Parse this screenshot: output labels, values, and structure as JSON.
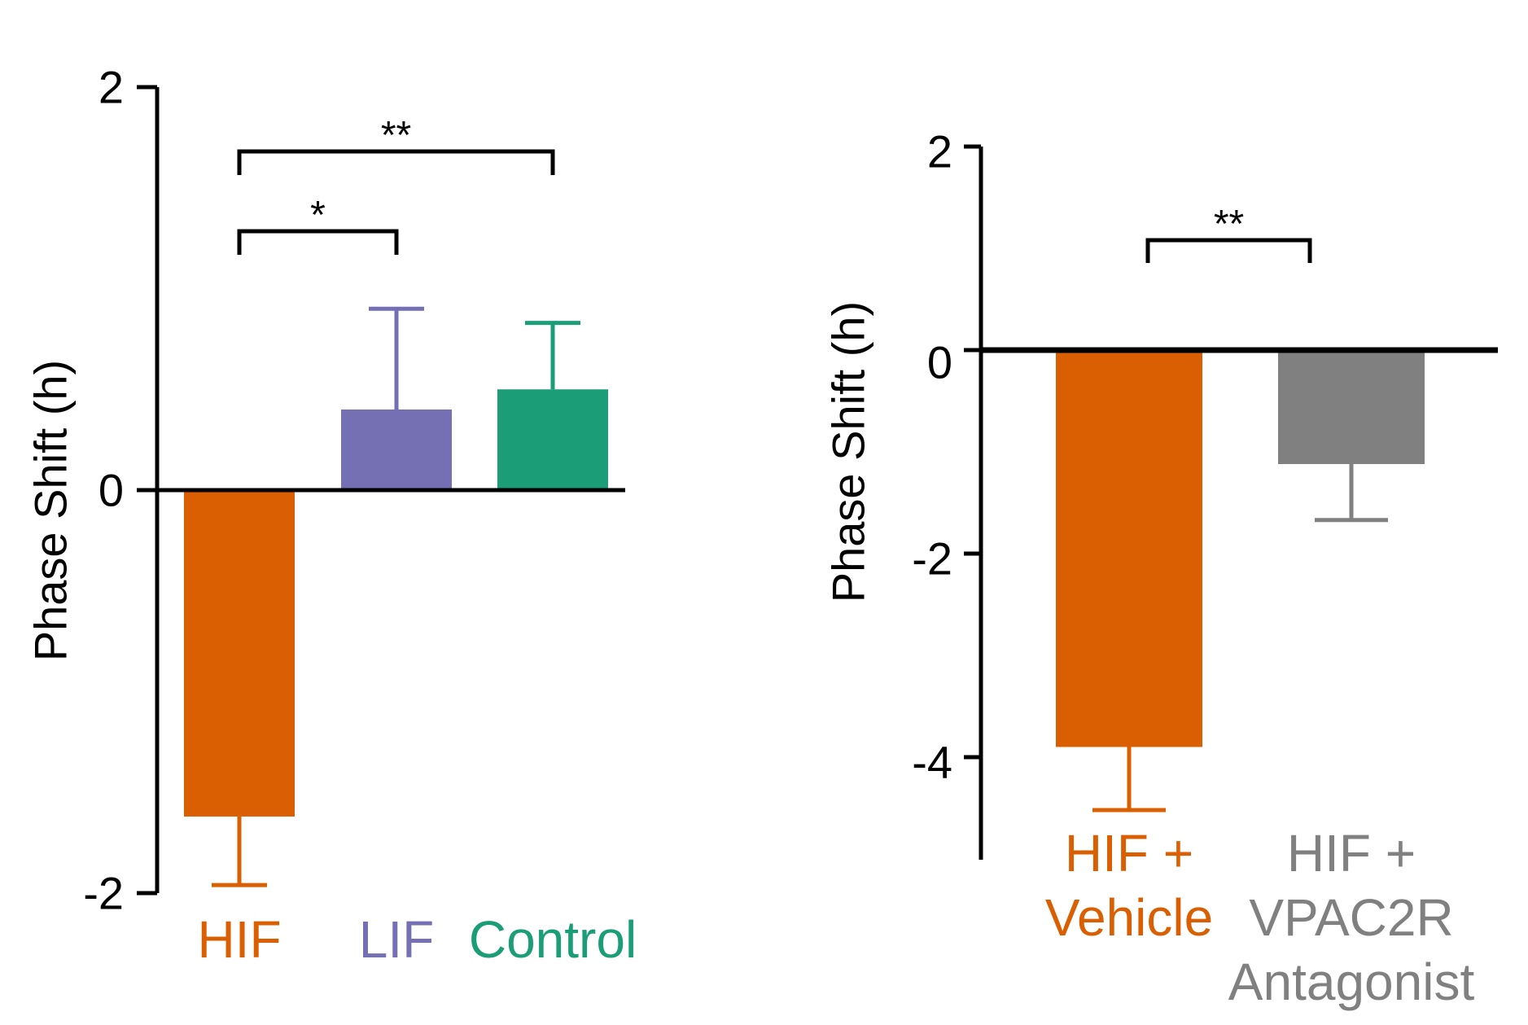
{
  "chart_data": [
    {
      "type": "bar",
      "title": "",
      "xlabel": "",
      "ylabel": "Phase Shift (h)",
      "ylim": [
        -2,
        2
      ],
      "yticks": [
        "2",
        "0",
        "-2"
      ],
      "categories": [
        "HIF",
        "LIF",
        "Control"
      ],
      "values": [
        -1.62,
        0.4,
        0.5
      ],
      "errors": [
        0.34,
        0.5,
        0.33
      ],
      "colors": [
        "#d95f02",
        "#7570b3",
        "#1b9e77"
      ],
      "significance": [
        {
          "from": "HIF",
          "to": "LIF",
          "label": "*"
        },
        {
          "from": "HIF",
          "to": "Control",
          "label": "**"
        }
      ]
    },
    {
      "type": "bar",
      "title": "",
      "xlabel": "",
      "ylabel": "Phase Shift (h)",
      "ylim": [
        -5,
        2
      ],
      "yticks": [
        "2",
        "0",
        "-2",
        "-4"
      ],
      "categories": [
        "HIF +\nVehicle",
        "HIF +\nVPAC2R\nAntagonist"
      ],
      "values": [
        -3.9,
        -1.12
      ],
      "errors": [
        0.62,
        0.55
      ],
      "colors": [
        "#d95f02",
        "#808080"
      ],
      "significance": [
        {
          "from": "HIF +\nVehicle",
          "to": "HIF +\nVPAC2R\nAntagonist",
          "label": "**"
        }
      ]
    }
  ]
}
